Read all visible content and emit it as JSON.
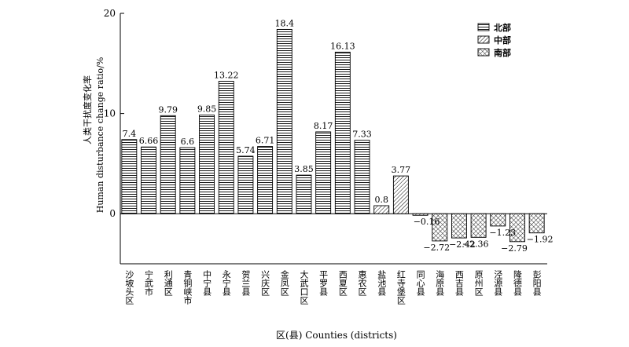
{
  "chart_data": {
    "type": "bar",
    "ylabel_cn": "人类干扰度变化率",
    "ylabel_en": "Human disturbance change ratio/%",
    "xlabel": "区(县) Counties (districts)",
    "ylim": [
      -5,
      20
    ],
    "yticks": [
      0,
      10,
      20
    ],
    "grid": false,
    "legend_position": "top-right",
    "categories": [
      "沙坡头区",
      "宁武市",
      "利通区",
      "青铜峡市",
      "中宁县",
      "永宁县",
      "贺兰县",
      "兴庆区",
      "金凤区",
      "大武口区",
      "平罗县",
      "西夏区",
      "惠农区",
      "盐池县",
      "红寺堡区",
      "同心县",
      "海原县",
      "西吉县",
      "原州区",
      "泾源县",
      "隆德县",
      "彭阳县"
    ],
    "values": [
      7.4,
      6.66,
      9.79,
      6.6,
      9.85,
      13.22,
      5.74,
      6.71,
      18.4,
      3.85,
      8.17,
      16.13,
      7.33,
      0.8,
      3.77,
      -0.16,
      -2.72,
      -2.42,
      -2.36,
      -1.23,
      -2.79,
      -1.92
    ],
    "value_labels": [
      "7.4",
      "6.66",
      "9.79",
      "6.6",
      "9.85",
      "13.22",
      "5.74",
      "6.71",
      "18.4",
      "3.85",
      "8.17",
      "16.13",
      "7.33",
      "0.8",
      "3.77",
      "−0.16",
      "−2.72",
      "−2.42",
      "−2.36",
      "−1.23",
      "−2.79",
      "−1.92"
    ],
    "groups": [
      "北部",
      "北部",
      "北部",
      "北部",
      "北部",
      "北部",
      "北部",
      "北部",
      "北部",
      "北部",
      "北部",
      "北部",
      "北部",
      "中部",
      "中部",
      "中部",
      "南部",
      "南部",
      "南部",
      "南部",
      "南部",
      "南部"
    ],
    "legend": [
      {
        "name": "北部",
        "pattern": "horizontal-lines"
      },
      {
        "name": "中部",
        "pattern": "diagonal-lines"
      },
      {
        "name": "南部",
        "pattern": "crosshatch"
      }
    ]
  }
}
